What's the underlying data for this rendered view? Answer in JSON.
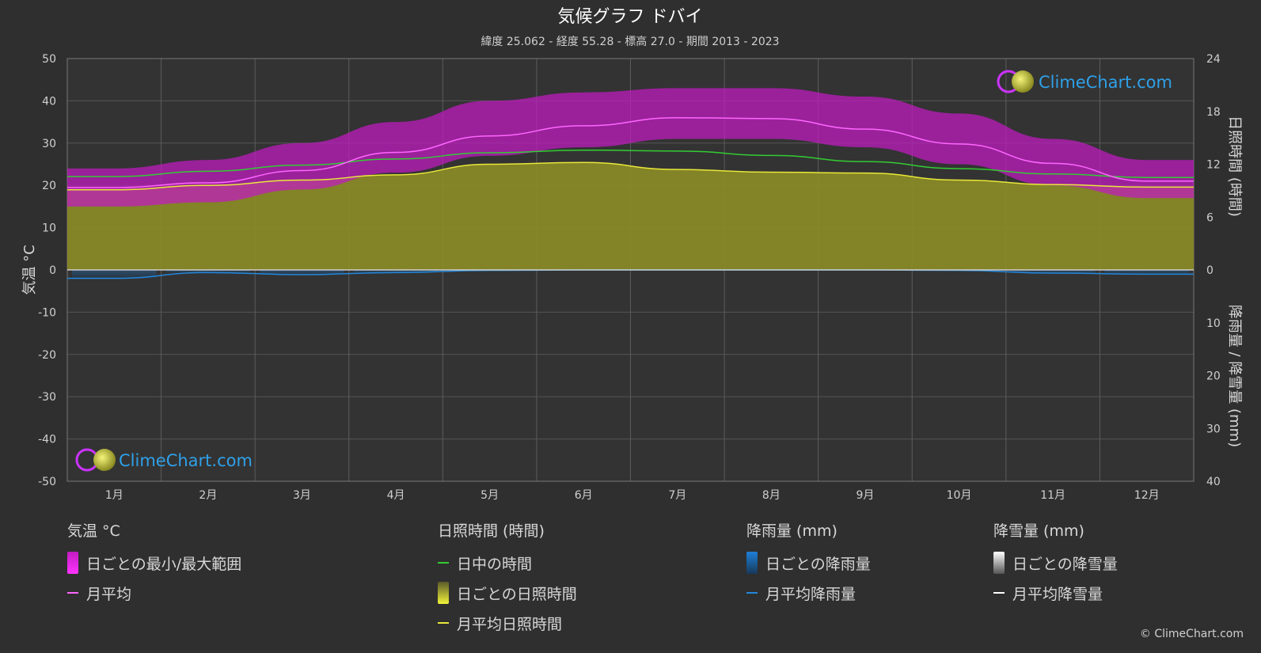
{
  "title": "気候グラフ ドバイ",
  "subtitle": "緯度 25.062 - 経度 55.28 - 標高 27.0 - 期間 2013 - 2023",
  "brand": "ClimeChart.com",
  "copyright": "© ClimeChart.com",
  "chart_data": {
    "type": "area",
    "months": [
      "1月",
      "2月",
      "3月",
      "4月",
      "5月",
      "6月",
      "7月",
      "8月",
      "9月",
      "10月",
      "11月",
      "12月"
    ],
    "y_left": {
      "label": "気温 °C",
      "range": [
        -50,
        50
      ],
      "ticks": [
        50,
        40,
        30,
        20,
        10,
        0,
        -10,
        -20,
        -30,
        -40,
        -50
      ]
    },
    "y_right_top": {
      "label": "日照時間 (時間)",
      "range": [
        0,
        24
      ],
      "ticks": [
        24,
        18,
        12,
        6,
        0
      ]
    },
    "y_right_bottom": {
      "label": "降雨量 / 降雪量 (mm)",
      "range": [
        0,
        40
      ],
      "ticks": [
        0,
        10,
        20,
        30,
        40
      ]
    },
    "series": [
      {
        "name": "日中の時間",
        "color": "#33cc33",
        "values": [
          10.6,
          11.2,
          11.9,
          12.6,
          13.3,
          13.6,
          13.5,
          13.0,
          12.3,
          11.5,
          10.9,
          10.5
        ]
      },
      {
        "name": "月平均日照時間",
        "color": "#e8e83a",
        "values": [
          9.1,
          9.6,
          10.2,
          10.8,
          12.0,
          12.2,
          11.4,
          11.1,
          11.0,
          10.2,
          9.7,
          9.4
        ]
      },
      {
        "name": "月平均",
        "color": "#ff66ff",
        "values": [
          19.5,
          20.6,
          23.5,
          27.8,
          31.7,
          34.1,
          36.0,
          35.8,
          33.3,
          29.8,
          25.2,
          21.0
        ]
      },
      {
        "name": "日ごとの最小/最大範囲",
        "color": "#dd11dd",
        "min": [
          15,
          16,
          19,
          23,
          27,
          29,
          31,
          31,
          29,
          25,
          20,
          17
        ],
        "max": [
          24,
          26,
          30,
          35,
          40,
          42,
          43,
          43,
          41,
          37,
          31,
          26
        ]
      },
      {
        "name": "月平均降雨量",
        "color": "#2288dd",
        "values": [
          1.6,
          0.5,
          0.9,
          0.5,
          0.1,
          0.0,
          0.0,
          0.0,
          0.0,
          0.1,
          0.6,
          0.8
        ]
      },
      {
        "name": "月平均降雪量",
        "color": "#ffffff",
        "values": [
          0,
          0,
          0,
          0,
          0,
          0,
          0,
          0,
          0,
          0,
          0,
          0
        ]
      }
    ]
  },
  "legend": {
    "temp": {
      "header": "気温 °C",
      "items": [
        "日ごとの最小/最大範囲",
        "月平均"
      ]
    },
    "sun": {
      "header": "日照時間 (時間)",
      "items": [
        "日中の時間",
        "日ごとの日照時間",
        "月平均日照時間"
      ]
    },
    "rain": {
      "header": "降雨量 (mm)",
      "items": [
        "日ごとの降雨量",
        "月平均降雨量"
      ]
    },
    "snow": {
      "header": "降雪量 (mm)",
      "items": [
        "日ごとの降雪量",
        "月平均降雪量"
      ]
    }
  }
}
